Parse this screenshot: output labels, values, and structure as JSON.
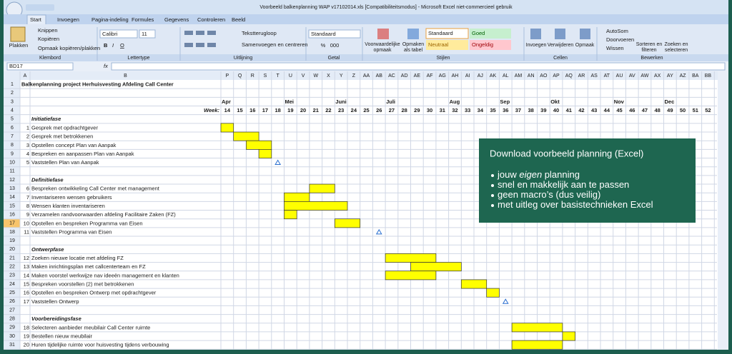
{
  "window": {
    "title": "Voorbeeld balkenplanning WAP v17102014.xls  [Compatibiliteitsmodus] - Microsoft Excel niet-commercieel gebruik"
  },
  "ribbon": {
    "tabs": [
      "Start",
      "Invoegen",
      "Pagina-indeling",
      "Formules",
      "Gegevens",
      "Controleren",
      "Beeld"
    ],
    "groups": [
      "Klembord",
      "Lettertype",
      "Uitlijning",
      "Getal",
      "Stijlen",
      "Cellen",
      "Bewerken"
    ],
    "clipboard": {
      "paste": "Plakken",
      "cut": "Knippen",
      "copy": "Kopiëren",
      "format_painter": "Opmaak kopiëren/plakken"
    },
    "font": {
      "name": "Calibri",
      "size": "11",
      "buttons": [
        "B",
        "I",
        "O"
      ]
    },
    "alignment": {
      "wrap": "Tekstterugloop",
      "merge": "Samenvoegen en centreren"
    },
    "number": {
      "format": "Standaard",
      "percent": "%",
      "thousands": "000"
    },
    "styles": {
      "conditional": [
        "Voorwaardelijke",
        "opmaak"
      ],
      "as_table": [
        "Opmaken",
        "als tabel"
      ],
      "standard": "Standaard",
      "good": "Goed",
      "neutral": "Neutraal",
      "bad": "Ongeldig"
    },
    "cells": [
      "Invoegen",
      "Verwijderen",
      "Opmaak"
    ],
    "editing": {
      "autosum": "AutoSom",
      "fill": "Doorvoeren",
      "clear": "Wissen",
      "sort": [
        "Sorteren en",
        "filteren"
      ],
      "find": [
        "Zoeken en",
        "selecteren"
      ]
    }
  },
  "formula_bar": {
    "name_box": "BD17",
    "fx": "fx"
  },
  "sheet": {
    "columns": [
      "A",
      "B",
      "P",
      "Q",
      "R",
      "S",
      "T",
      "U",
      "V",
      "W",
      "X",
      "Y",
      "Z",
      "AA",
      "AB",
      "AC",
      "AD",
      "AE",
      "AF",
      "AG",
      "AH",
      "AI",
      "AJ",
      "AK",
      "AL",
      "AM",
      "AN",
      "AO",
      "AP",
      "AQ",
      "AR",
      "AS",
      "AT",
      "AU",
      "AV",
      "AW",
      "AX",
      "AY",
      "AZ",
      "BA",
      "BB"
    ],
    "row_numbers": [
      1,
      2,
      3,
      4,
      5,
      6,
      7,
      8,
      9,
      10,
      11,
      12,
      13,
      14,
      15,
      16,
      17,
      18,
      19,
      20,
      21,
      22,
      23,
      24,
      25,
      26,
      27,
      28,
      29,
      30,
      31
    ],
    "title": "Balkenplanning project Herhuisvesting Afdeling Call Center",
    "week_label": "Week:",
    "weeks": [
      14,
      15,
      16,
      17,
      18,
      19,
      20,
      21,
      22,
      23,
      24,
      25,
      26,
      27,
      28,
      29,
      30,
      31,
      32,
      33,
      34,
      35,
      36,
      37,
      38,
      39,
      40,
      41,
      42,
      43,
      44,
      45,
      46,
      47,
      48,
      49,
      50,
      51,
      52
    ],
    "months": [
      {
        "label": "Apr",
        "week": 14
      },
      {
        "label": "Mei",
        "week": 19
      },
      {
        "label": "Juni",
        "week": 23
      },
      {
        "label": "Juli",
        "week": 27
      },
      {
        "label": "Aug",
        "week": 32
      },
      {
        "label": "Sep",
        "week": 36
      },
      {
        "label": "Okt",
        "week": 40
      },
      {
        "label": "Nov",
        "week": 45
      },
      {
        "label": "Dec",
        "week": 49
      }
    ],
    "rows": [
      {
        "row": 5,
        "phase": "Initiatiefase"
      },
      {
        "row": 6,
        "num": 1,
        "text": "Gesprek met opdrachtgever",
        "bar": [
          14,
          14
        ]
      },
      {
        "row": 7,
        "num": 2,
        "text": "Gesprek met betrokkenen",
        "bar": [
          15,
          16
        ]
      },
      {
        "row": 8,
        "num": 3,
        "text": "Opstellen concept Plan van Aanpak",
        "bar": [
          16,
          17
        ]
      },
      {
        "row": 9,
        "num": 4,
        "text": "Bespreken en aanpassen Plan van Aanpak",
        "bar": [
          17,
          17
        ]
      },
      {
        "row": 10,
        "num": 5,
        "text": "Vaststellen Plan van Aanpak",
        "milestone": 18
      },
      {
        "row": 12,
        "phase": "Definitiefase"
      },
      {
        "row": 13,
        "num": 6,
        "text": "Bespreken ontwikkeling Call Center met management",
        "bar": [
          21,
          22
        ]
      },
      {
        "row": 14,
        "num": 7,
        "text": "Inventariseren wensen gebruikers",
        "bar": [
          19,
          20
        ]
      },
      {
        "row": 15,
        "num": 8,
        "text": "Wensen klanten inventariseren",
        "bar": [
          19,
          23
        ]
      },
      {
        "row": 16,
        "num": 9,
        "text": "Verzamelen randvoorwaarden afdeling Facilitaire Zaken (FZ)",
        "bar": [
          19,
          19
        ]
      },
      {
        "row": 17,
        "num": 10,
        "text": "Opstellen en bespreken Programma van Eisen",
        "bar": [
          23,
          24
        ]
      },
      {
        "row": 18,
        "num": 11,
        "text": "Vaststellen Programma van Eisen",
        "milestone": 26
      },
      {
        "row": 20,
        "phase": "Ontwerpfase"
      },
      {
        "row": 21,
        "num": 12,
        "text": "Zoeken nieuwe locatie met afdeling FZ",
        "bar": [
          27,
          30
        ]
      },
      {
        "row": 22,
        "num": 13,
        "text": "Maken inrichtingsplan met callcenterteam en FZ",
        "bar": [
          29,
          32
        ]
      },
      {
        "row": 23,
        "num": 14,
        "text": "Maken voorstel werkwijze nav ideeën management en klanten",
        "bar": [
          27,
          30
        ]
      },
      {
        "row": 24,
        "num": 15,
        "text": "Bespreken voorstellen (2) met betrokkenen",
        "bar": [
          33,
          34
        ]
      },
      {
        "row": 25,
        "num": 16,
        "text": "Opstellen en bespreken Ontwerp met opdrachtgever",
        "bar": [
          35,
          35
        ]
      },
      {
        "row": 26,
        "num": 17,
        "text": "Vaststellen Ontwerp",
        "milestone": 36
      },
      {
        "row": 28,
        "phase": "Voorbereidingsfase"
      },
      {
        "row": 29,
        "num": 18,
        "text": "Selecteren aanbieder meubilair Call Center ruimte",
        "bar": [
          37,
          40
        ]
      },
      {
        "row": 30,
        "num": 19,
        "text": "Bestellen nieuw meubilair",
        "bar": [
          41,
          41
        ]
      },
      {
        "row": 31,
        "num": 20,
        "text": "Huren tijdelijke ruimte voor huisvesting tijdens verbouwing",
        "bar": [
          37,
          40
        ]
      }
    ],
    "selected_row": 17
  },
  "callout": {
    "title": "Download voorbeeld planning (Excel)",
    "bullets": [
      [
        "jouw ",
        "eigen",
        " planning"
      ],
      [
        "snel en makkelijk aan te passen"
      ],
      [
        "geen macro’s (dus veilig)"
      ],
      [
        "met uitleg over basistechnieken Excel"
      ]
    ]
  }
}
